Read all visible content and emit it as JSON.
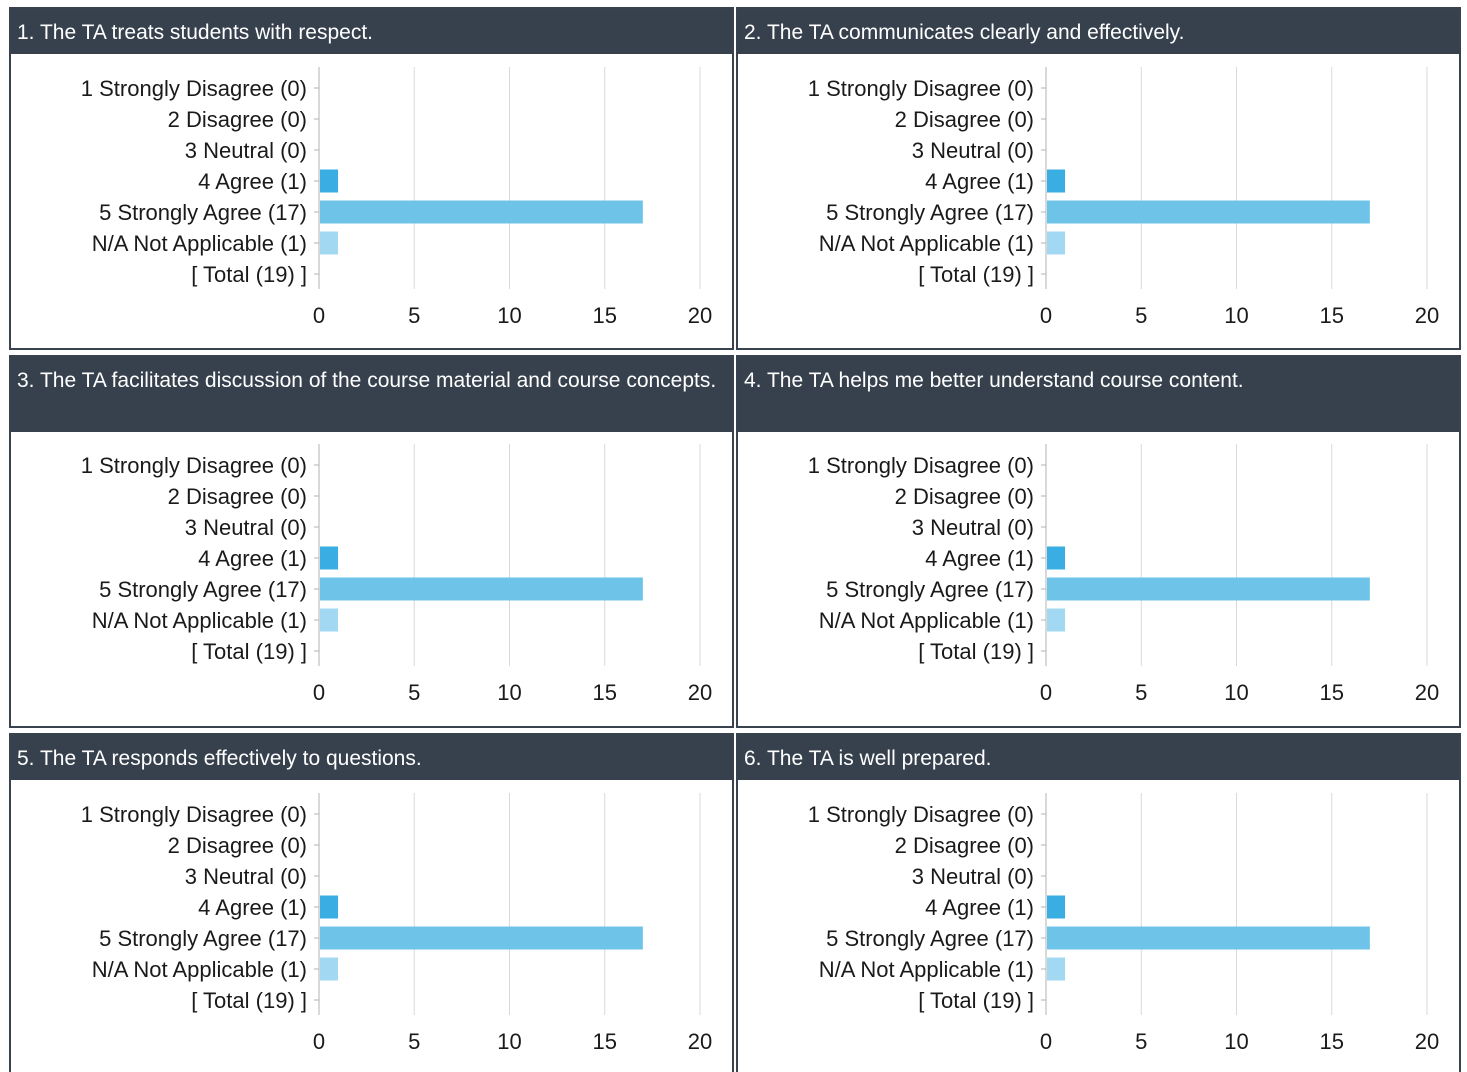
{
  "chart_data": [
    {
      "type": "bar",
      "orientation": "horizontal",
      "title": "1. The TA treats students with respect.",
      "categories": [
        "1 Strongly Disagree (0)",
        "2 Disagree (0)",
        "3 Neutral (0)",
        "4 Agree (1)",
        "5 Strongly Agree (17)",
        "N/A Not Applicable (1)",
        "[ Total (19) ]"
      ],
      "values": [
        0,
        0,
        0,
        1,
        17,
        1,
        0
      ],
      "bar_colors": [
        "#3aaee2",
        "#3aaee2",
        "#3aaee2",
        "#3aaee2",
        "#6ec4e8",
        "#a2d8f2",
        "#a2d8f2"
      ],
      "xticks": [
        0,
        5,
        10,
        15,
        20
      ],
      "xlim": [
        0,
        20
      ],
      "grid": true
    },
    {
      "type": "bar",
      "orientation": "horizontal",
      "title": "2. The TA communicates clearly and effectively.",
      "categories": [
        "1 Strongly Disagree (0)",
        "2 Disagree (0)",
        "3 Neutral (0)",
        "4 Agree (1)",
        "5 Strongly Agree (17)",
        "N/A Not Applicable (1)",
        "[ Total (19) ]"
      ],
      "values": [
        0,
        0,
        0,
        1,
        17,
        1,
        0
      ],
      "bar_colors": [
        "#3aaee2",
        "#3aaee2",
        "#3aaee2",
        "#3aaee2",
        "#6ec4e8",
        "#a2d8f2",
        "#a2d8f2"
      ],
      "xticks": [
        0,
        5,
        10,
        15,
        20
      ],
      "xlim": [
        0,
        20
      ],
      "grid": true
    },
    {
      "type": "bar",
      "orientation": "horizontal",
      "title": "3. The TA facilitates discussion of the course material and course concepts.",
      "categories": [
        "1 Strongly Disagree (0)",
        "2 Disagree (0)",
        "3 Neutral (0)",
        "4 Agree (1)",
        "5 Strongly Agree (17)",
        "N/A Not Applicable (1)",
        "[ Total (19) ]"
      ],
      "values": [
        0,
        0,
        0,
        1,
        17,
        1,
        0
      ],
      "bar_colors": [
        "#3aaee2",
        "#3aaee2",
        "#3aaee2",
        "#3aaee2",
        "#6ec4e8",
        "#a2d8f2",
        "#a2d8f2"
      ],
      "xticks": [
        0,
        5,
        10,
        15,
        20
      ],
      "xlim": [
        0,
        20
      ],
      "grid": true
    },
    {
      "type": "bar",
      "orientation": "horizontal",
      "title": "4. The TA helps me better understand course content.",
      "categories": [
        "1 Strongly Disagree (0)",
        "2 Disagree (0)",
        "3 Neutral (0)",
        "4 Agree (1)",
        "5 Strongly Agree (17)",
        "N/A Not Applicable (1)",
        "[ Total (19) ]"
      ],
      "values": [
        0,
        0,
        0,
        1,
        17,
        1,
        0
      ],
      "bar_colors": [
        "#3aaee2",
        "#3aaee2",
        "#3aaee2",
        "#3aaee2",
        "#6ec4e8",
        "#a2d8f2",
        "#a2d8f2"
      ],
      "xticks": [
        0,
        5,
        10,
        15,
        20
      ],
      "xlim": [
        0,
        20
      ],
      "grid": true
    },
    {
      "type": "bar",
      "orientation": "horizontal",
      "title": "5. The TA responds effectively to questions.",
      "categories": [
        "1 Strongly Disagree (0)",
        "2 Disagree (0)",
        "3 Neutral (0)",
        "4 Agree (1)",
        "5 Strongly Agree (17)",
        "N/A Not Applicable (1)",
        "[ Total (19) ]"
      ],
      "values": [
        0,
        0,
        0,
        1,
        17,
        1,
        0
      ],
      "bar_colors": [
        "#3aaee2",
        "#3aaee2",
        "#3aaee2",
        "#3aaee2",
        "#6ec4e8",
        "#a2d8f2",
        "#a2d8f2"
      ],
      "xticks": [
        0,
        5,
        10,
        15,
        20
      ],
      "xlim": [
        0,
        20
      ],
      "grid": true
    },
    {
      "type": "bar",
      "orientation": "horizontal",
      "title": "6. The TA is well prepared.",
      "categories": [
        "1 Strongly Disagree (0)",
        "2 Disagree (0)",
        "3 Neutral (0)",
        "4 Agree (1)",
        "5 Strongly Agree (17)",
        "N/A Not Applicable (1)",
        "[ Total (19) ]"
      ],
      "values": [
        0,
        0,
        0,
        1,
        17,
        1,
        0
      ],
      "bar_colors": [
        "#3aaee2",
        "#3aaee2",
        "#3aaee2",
        "#3aaee2",
        "#6ec4e8",
        "#a2d8f2",
        "#a2d8f2"
      ],
      "xticks": [
        0,
        5,
        10,
        15,
        20
      ],
      "xlim": [
        0,
        20
      ],
      "grid": true
    }
  ],
  "colors": {
    "header_background": "#36414d",
    "header_text": "#ffffff",
    "panel_border": "#39434f",
    "gridline": "#d9d9d9",
    "axis_line": "#b3b3b3"
  }
}
